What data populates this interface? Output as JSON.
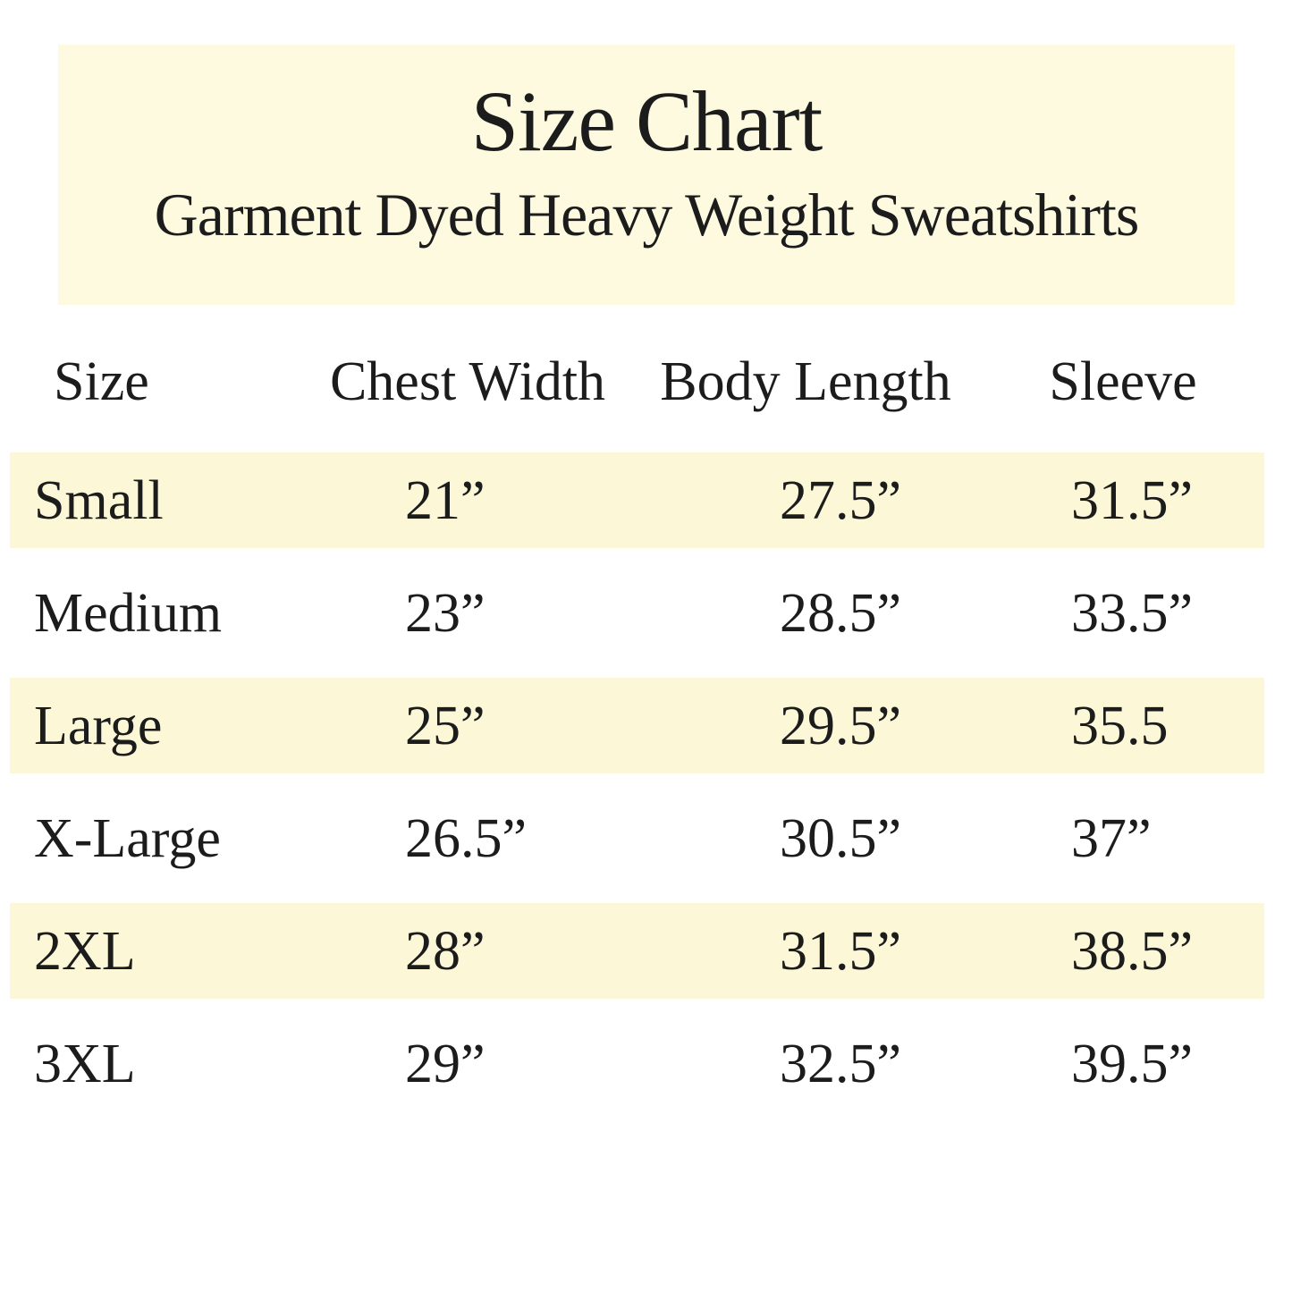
{
  "header": {
    "title": "Size Chart",
    "subtitle": "Garment Dyed Heavy Weight Sweatshirts"
  },
  "table": {
    "columns": [
      "Size",
      "Chest Width",
      "Body Length",
      "Sleeve"
    ],
    "rows": [
      {
        "size": "Small",
        "chest": "21”",
        "body": "27.5”",
        "sleeve": "31.5”",
        "highlighted": true
      },
      {
        "size": "Medium",
        "chest": "23”",
        "body": "28.5”",
        "sleeve": "33.5”",
        "highlighted": false
      },
      {
        "size": "Large",
        "chest": "25”",
        "body": "29.5”",
        "sleeve": "35.5",
        "highlighted": true
      },
      {
        "size": "X-Large",
        "chest": "26.5”",
        "body": "30.5”",
        "sleeve": "37”",
        "highlighted": false
      },
      {
        "size": "2XL",
        "chest": "28”",
        "body": "31.5”",
        "sleeve": "38.5”",
        "highlighted": true
      },
      {
        "size": "3XL",
        "chest": "29”",
        "body": "32.5”",
        "sleeve": "39.5”",
        "highlighted": false
      }
    ]
  },
  "colors": {
    "background": "#ffffff",
    "header_box": "#FDFADF",
    "row_highlight": "#FBF7D7",
    "text": "#1c1c1c"
  }
}
